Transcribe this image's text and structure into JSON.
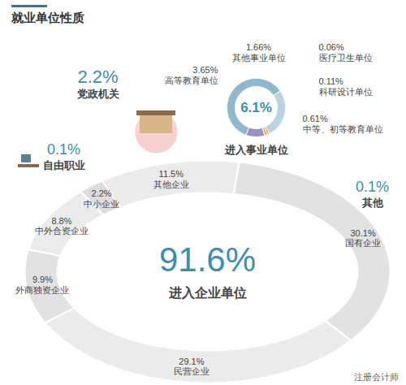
{
  "title": "就业单位性质",
  "watermark": "注册会计师",
  "chart_data": [
    {
      "type": "pie",
      "title": "进入企业单位",
      "total": 91.6,
      "total_label": "91.6%",
      "categories": [
        "国有企业",
        "民营企业",
        "外商独资企业",
        "中外合资企业",
        "中小企业",
        "其他企业"
      ],
      "values": [
        30.1,
        29.1,
        9.9,
        8.8,
        2.2,
        11.5
      ],
      "value_labels": [
        "30.1%",
        "29.1%",
        "9.9%",
        "8.8%",
        "2.2%",
        "11.5%"
      ],
      "colors": [
        "#e2e2e2",
        "#ebebeb",
        "#e2e2e2",
        "#ebebeb",
        "#dcdcdc",
        "#ebebeb"
      ],
      "data_labels": true
    },
    {
      "type": "pie",
      "title": "进入事业单位",
      "total": 6.1,
      "total_label": "6.1%",
      "categories": [
        "高等教育单位",
        "其他事业单位",
        "医疗卫生单位",
        "科研设计单位",
        "中等、初等教育单位"
      ],
      "values": [
        3.65,
        1.66,
        0.06,
        0.11,
        0.61
      ],
      "value_labels": [
        "3.65%",
        "1.66%",
        "0.06%",
        "0.11%",
        "0.61%"
      ],
      "colors": [
        "#8fb8cc",
        "#b9d3df",
        "#e07a7a",
        "#f2b84b",
        "#9b8fc4"
      ],
      "data_labels": true
    },
    {
      "type": "stat",
      "categories": [
        "党政机关",
        "自由职业",
        "其他"
      ],
      "values": [
        2.2,
        0.1,
        0.1
      ],
      "value_labels": [
        "2.2%",
        "0.1%",
        "0.1%"
      ]
    }
  ]
}
